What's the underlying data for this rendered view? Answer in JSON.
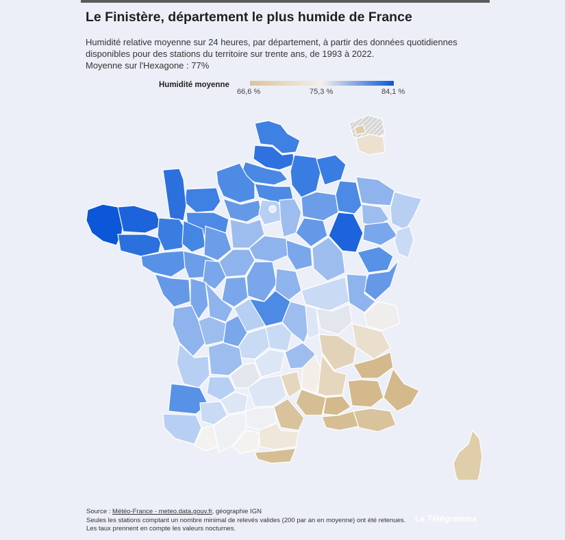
{
  "title": "Le Finistère, département le plus humide de France",
  "subtitle": {
    "line1": "Humidité relative moyenne sur 24 heures, par département, à partir des données quotidiennes",
    "line2": "disponibles pour des stations du territoire sur trente ans, de 1993 à 2022.",
    "line3": "Moyenne sur l'Hexagone : 77%"
  },
  "legend": {
    "label": "Humidité moyenne",
    "min": "66,6 %",
    "mid": "75,3 %",
    "max": "84,1 %",
    "colors": {
      "low": "#dcc49b",
      "mid": "#f3efe8",
      "high": "#0b57d8"
    }
  },
  "map": {
    "region": "France métropolitaine",
    "most_humid": "Finistère",
    "no_data_pattern": "hatched"
  },
  "footer": {
    "source_prefix": "Source : ",
    "source_link": "Météo-France - meteo.data.gouv.fr",
    "source_suffix": ", géographie IGN",
    "note1": "Seules les stations comptant un nombre minimal de relevés valides (200 par an en moyenne) ont été retenues.",
    "note2": "Les taux prennent en compte les valeurs nocturnes."
  },
  "brand": "Le Télégramme"
}
